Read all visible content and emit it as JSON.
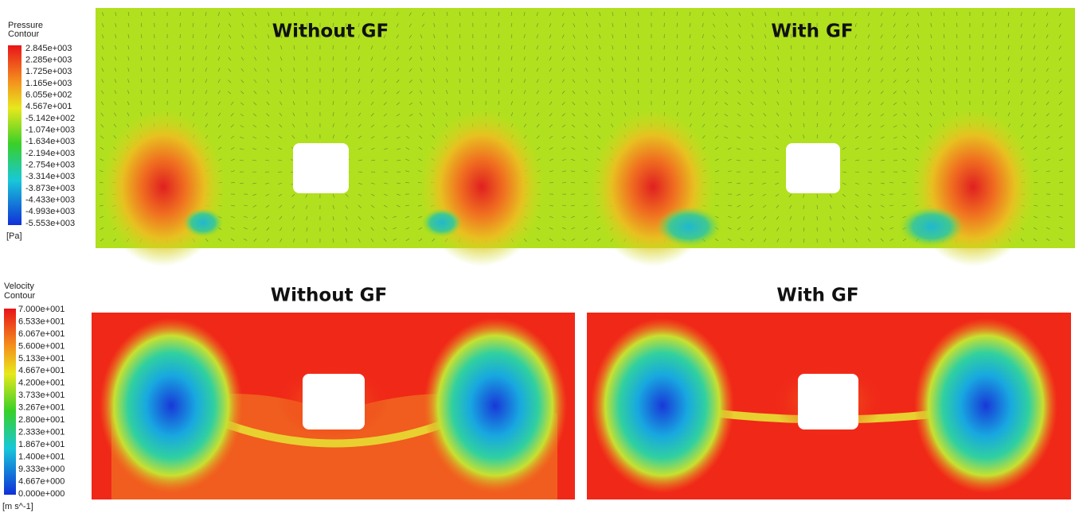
{
  "pressure": {
    "legend_title": [
      "Pressure",
      "Contour"
    ],
    "units": "[Pa]",
    "labels": [
      "2.845e+003",
      "2.285e+003",
      "1.725e+003",
      "1.165e+003",
      "6.055e+002",
      "4.567e+001",
      "-5.142e+002",
      "-1.074e+003",
      "-1.634e+003",
      "-2.194e+003",
      "-2.754e+003",
      "-3.314e+003",
      "-3.873e+003",
      "-4.433e+003",
      "-4.993e+003",
      "-5.553e+003"
    ],
    "panels": [
      "Without GF",
      "With GF"
    ]
  },
  "velocity": {
    "legend_title": [
      "Velocity",
      "Contour"
    ],
    "units": "[m s^-1]",
    "labels": [
      "7.000e+001",
      "6.533e+001",
      "6.067e+001",
      "5.600e+001",
      "5.133e+001",
      "4.667e+001",
      "4.200e+001",
      "3.733e+001",
      "3.267e+001",
      "2.800e+001",
      "2.333e+001",
      "1.867e+001",
      "1.400e+001",
      "9.333e+000",
      "4.667e+000",
      "0.000e+000"
    ],
    "panels": [
      "Without GF",
      "With GF"
    ]
  }
}
